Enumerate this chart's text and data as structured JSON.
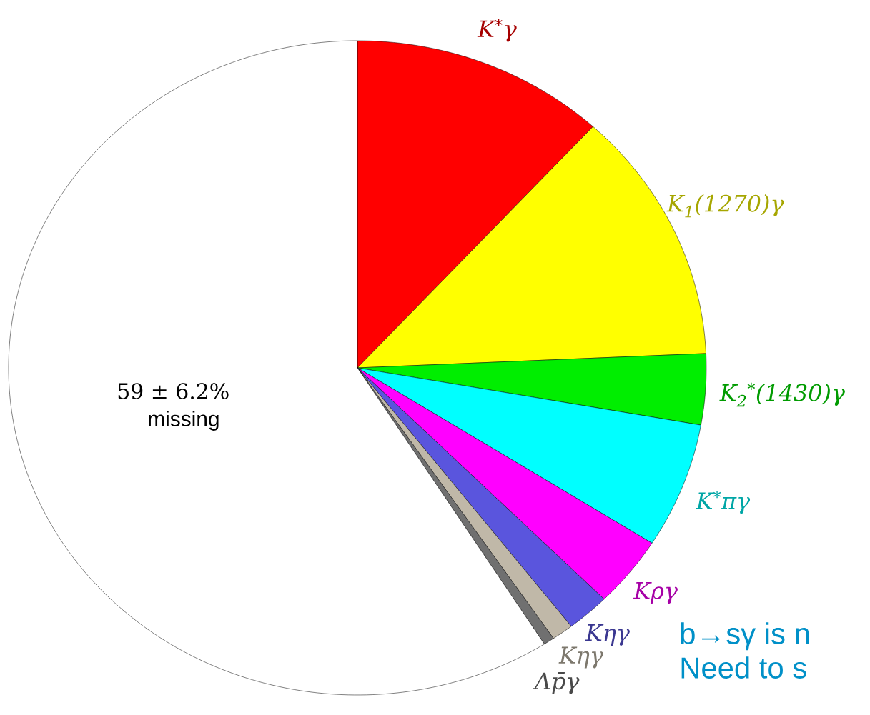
{
  "chart_data": {
    "type": "pie",
    "categories": [
      "K$^{*}$γ",
      "K$_{1}$(1270)γ",
      "K$_{2}$$^{*}$(1430)γ",
      "K$^{*}$πγ",
      "Kργ",
      "Kηγ",
      "Kηγ",
      "Λp̄γ",
      "missing"
    ],
    "values": [
      11.8,
      12.5,
      3.5,
      6.2,
      3.5,
      2.0,
      1.0,
      0.5,
      59
    ],
    "colors": [
      "#ff0000",
      "#ffff00",
      "#00ee00",
      "#00ffff",
      "#ff00ff",
      "#5a55dd",
      "#c0b8a8",
      "#707070",
      "#ffffff"
    ],
    "value_labels": [
      null,
      null,
      null,
      null,
      null,
      null,
      null,
      null,
      "59 ± 6.2%"
    ],
    "annotations": [
      "b→sγ is n",
      "Need to s"
    ]
  }
}
